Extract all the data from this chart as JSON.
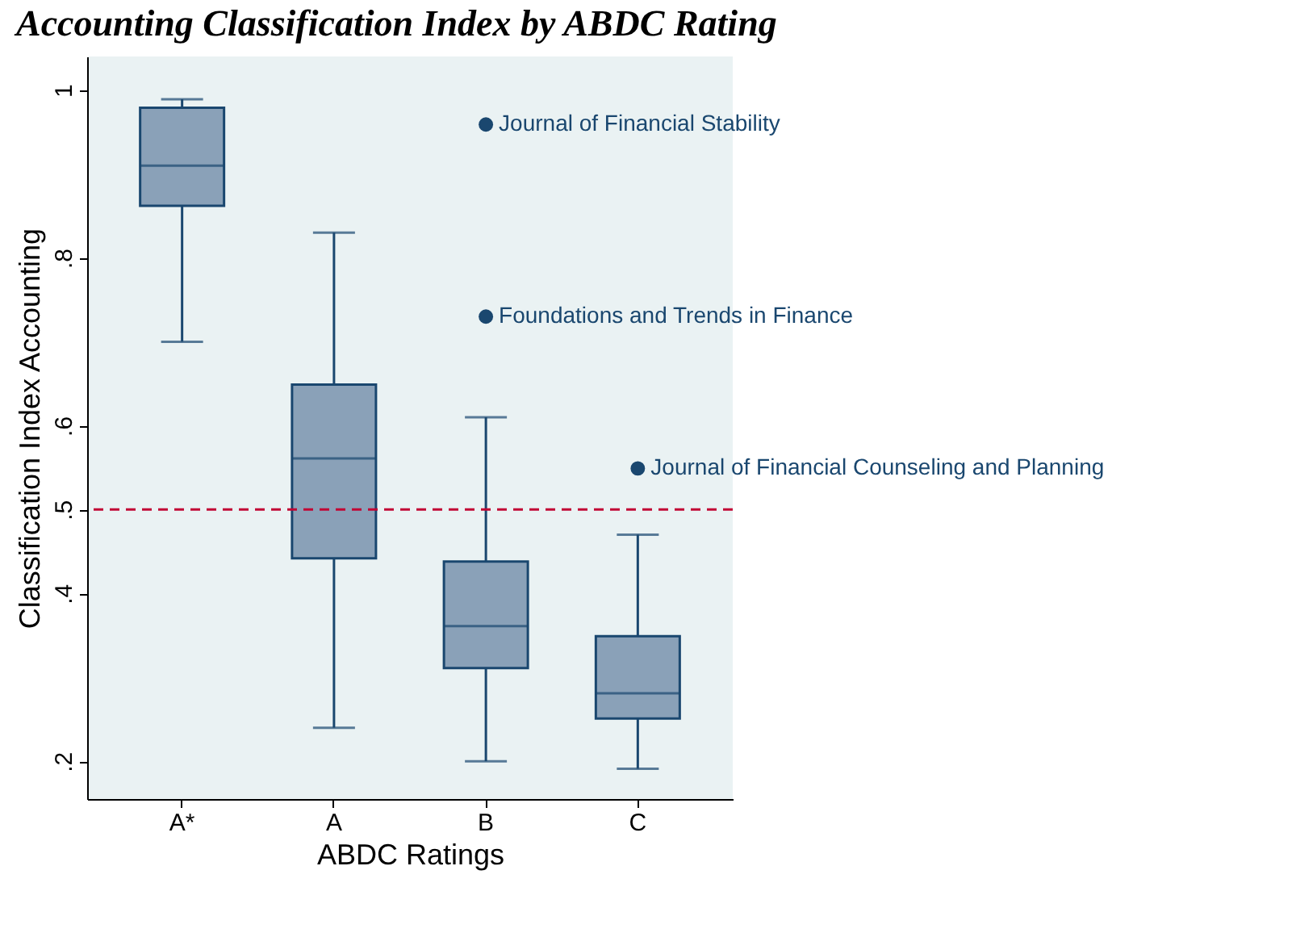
{
  "chart_data": {
    "type": "box",
    "title": "Accounting Classification Index by ABDC Rating",
    "xlabel": "ABDC Ratings",
    "ylabel": "Classification Index Accounting",
    "categories": [
      "A*",
      "A",
      "B",
      "C"
    ],
    "boxes": [
      {
        "low": 0.7,
        "q1": 0.862,
        "median": 0.91,
        "q3": 0.979,
        "high": 0.989
      },
      {
        "low": 0.24,
        "q1": 0.442,
        "median": 0.561,
        "q3": 0.649,
        "high": 0.83
      },
      {
        "low": 0.2,
        "q1": 0.311,
        "median": 0.361,
        "q3": 0.438,
        "high": 0.61,
        "outliers": [
          0.959,
          0.73
        ]
      },
      {
        "low": 0.191,
        "q1": 0.251,
        "median": 0.281,
        "q3": 0.349,
        "high": 0.47,
        "outliers": [
          0.549
        ]
      }
    ],
    "color": "#8aa1b8",
    "ylim": [
      0.155,
      1.04
    ],
    "yticks": [
      {
        "value": 0.2,
        "label": ".2"
      },
      {
        "value": 0.4,
        "label": ".4"
      },
      {
        "value": 0.5,
        "label": ".5"
      },
      {
        "value": 0.6,
        "label": ".6"
      },
      {
        "value": 0.8,
        "label": ".8"
      },
      {
        "value": 1,
        "label": "1"
      }
    ],
    "ref_lines": [
      {
        "axis": "y",
        "value": 0.5,
        "color": "#c10534",
        "line_style": "dashed"
      }
    ],
    "annotations": [
      "Journal of Financial Stability",
      "Foundations and Trends in Finance",
      "Journal of Financial Counseling and Planning"
    ],
    "grid": false
  }
}
